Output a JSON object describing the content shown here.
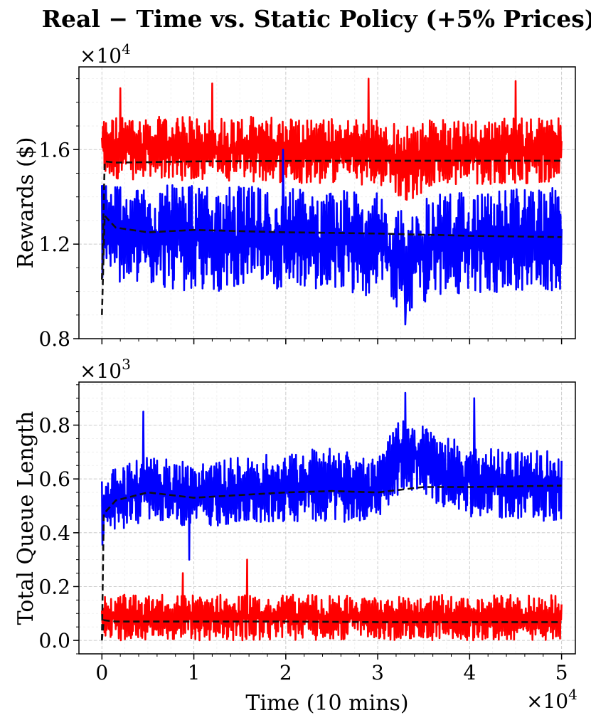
{
  "chart_data": [
    {
      "type": "line",
      "title": "Real − Time vs. Static Policy (+5% Prices)",
      "xlabel": "",
      "ylabel": "Rewards ($)",
      "y_multiplier": "×10",
      "y_multiplier_exp": "4",
      "xlim": [
        -2500,
        51500
      ],
      "ylim": [
        0.8,
        1.95
      ],
      "yticks": [
        0.8,
        1.2,
        1.6
      ],
      "ytick_labels": [
        "0.8",
        "1.2",
        "1.6"
      ],
      "xticks": [
        0,
        10000,
        20000,
        30000,
        40000,
        50000
      ],
      "grid": true,
      "series": [
        {
          "color": "#ff0000",
          "kind": "noisy",
          "x_start": 0,
          "x_end": 50000,
          "band": [
            [
              0,
              1.48,
              1.74
            ],
            [
              5000,
              1.47,
              1.74
            ],
            [
              10000,
              1.47,
              1.74
            ],
            [
              20000,
              1.46,
              1.74
            ],
            [
              30000,
              1.45,
              1.73
            ],
            [
              33500,
              1.38,
              1.7
            ],
            [
              36000,
              1.45,
              1.73
            ],
            [
              50000,
              1.46,
              1.74
            ]
          ],
          "peaks": [
            [
              2000,
              1.86
            ],
            [
              12000,
              1.88
            ],
            [
              29000,
              1.9
            ],
            [
              45000,
              1.89
            ]
          ]
        },
        {
          "color": "#0000ff",
          "kind": "noisy",
          "x_start": 0,
          "x_end": 50000,
          "band": [
            [
              0,
              1.04,
              1.48
            ],
            [
              5000,
              1.02,
              1.45
            ],
            [
              10000,
              1.0,
              1.45
            ],
            [
              20000,
              1.0,
              1.44
            ],
            [
              30000,
              0.98,
              1.42
            ],
            [
              33500,
              0.9,
              1.32
            ],
            [
              36000,
              0.98,
              1.42
            ],
            [
              50000,
              1.0,
              1.44
            ]
          ],
          "peaks": [
            [
              19700,
              1.6
            ],
            [
              33000,
              0.86
            ]
          ]
        },
        {
          "color": "#000000",
          "kind": "mean",
          "dashed": true,
          "x": [
            0,
            300,
            1500,
            5000,
            10000,
            20000,
            30000,
            40000,
            50000
          ],
          "y": [
            1.05,
            1.55,
            1.545,
            1.547,
            1.55,
            1.552,
            1.553,
            1.553,
            1.553
          ]
        },
        {
          "color": "#000000",
          "kind": "mean",
          "dashed": true,
          "x": [
            0,
            300,
            1500,
            5000,
            10000,
            20000,
            30000,
            40000,
            50000
          ],
          "y": [
            0.9,
            1.32,
            1.27,
            1.25,
            1.26,
            1.25,
            1.245,
            1.235,
            1.23
          ]
        }
      ]
    },
    {
      "type": "line",
      "title": "",
      "xlabel": "Time (10 mins)",
      "ylabel": "Total Queue Length",
      "y_multiplier": "×10",
      "y_multiplier_exp": "3",
      "x_multiplier": "×10",
      "x_multiplier_exp": "4",
      "xlim": [
        -2500,
        51500
      ],
      "ylim": [
        -0.05,
        0.96
      ],
      "yticks": [
        0.0,
        0.2,
        0.4,
        0.6,
        0.8
      ],
      "ytick_labels": [
        "0.0",
        "0.2",
        "0.4",
        "0.6",
        "0.8"
      ],
      "xticks": [
        0,
        10000,
        20000,
        30000,
        40000,
        50000
      ],
      "xtick_labels": [
        "0",
        "1",
        "2",
        "3",
        "4",
        "5"
      ],
      "grid": true,
      "series": [
        {
          "color": "#0000ff",
          "kind": "noisy",
          "x_start": 0,
          "x_end": 50000,
          "band": [
            [
              0,
              0.35,
              0.62
            ],
            [
              3000,
              0.42,
              0.66
            ],
            [
              5000,
              0.44,
              0.7
            ],
            [
              10000,
              0.42,
              0.66
            ],
            [
              20000,
              0.44,
              0.7
            ],
            [
              25000,
              0.44,
              0.72
            ],
            [
              30000,
              0.44,
              0.68
            ],
            [
              33000,
              0.56,
              0.86
            ],
            [
              35000,
              0.52,
              0.8
            ],
            [
              40000,
              0.46,
              0.72
            ],
            [
              50000,
              0.44,
              0.7
            ]
          ],
          "peaks": [
            [
              4500,
              0.85
            ],
            [
              33000,
              0.92
            ],
            [
              40500,
              0.9
            ],
            [
              9500,
              0.3
            ]
          ]
        },
        {
          "color": "#ff0000",
          "kind": "noisy",
          "x_start": 0,
          "x_end": 50000,
          "band": [
            [
              0,
              0.0,
              0.17
            ],
            [
              50000,
              0.0,
              0.17
            ]
          ],
          "peaks": [
            [
              15800,
              0.3
            ],
            [
              8800,
              0.25
            ]
          ]
        },
        {
          "color": "#000000",
          "kind": "mean",
          "dashed": true,
          "x": [
            0,
            200,
            1500,
            5000,
            10000,
            20000,
            25000,
            30000,
            35000,
            40000,
            50000
          ],
          "y": [
            0.0,
            0.47,
            0.52,
            0.55,
            0.53,
            0.55,
            0.555,
            0.55,
            0.57,
            0.57,
            0.575
          ]
        },
        {
          "color": "#000000",
          "kind": "mean",
          "dashed": true,
          "x": [
            0,
            200,
            1500,
            10000,
            20000,
            30000,
            40000,
            50000
          ],
          "y": [
            0.0,
            0.075,
            0.07,
            0.07,
            0.07,
            0.068,
            0.068,
            0.068
          ]
        }
      ]
    }
  ]
}
